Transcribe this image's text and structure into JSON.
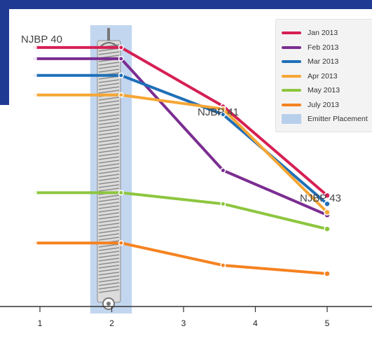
{
  "chart_data": {
    "type": "line",
    "x_categories": [
      "1",
      "2",
      "3",
      "4",
      "5"
    ],
    "site_labels": [
      {
        "text": "NJBP 40",
        "anchor_x": 1
      },
      {
        "text": "NJBP 41",
        "anchor_x": 3.55
      },
      {
        "text": "NJBP 43",
        "anchor_x": 5
      }
    ],
    "series": [
      {
        "name": "Jan 2013",
        "color": "#d61f54",
        "points": [
          [
            0.92,
            90
          ],
          [
            2.13,
            90
          ],
          [
            3.55,
            69
          ],
          [
            5,
            37
          ]
        ]
      },
      {
        "name": "Feb 2013",
        "color": "#7b2d91",
        "points": [
          [
            0.92,
            86
          ],
          [
            2.13,
            86
          ],
          [
            3.55,
            46
          ],
          [
            5,
            30
          ]
        ]
      },
      {
        "name": "Mar 2013",
        "color": "#1f6fb8",
        "points": [
          [
            0.92,
            80
          ],
          [
            2.13,
            80
          ],
          [
            3.55,
            66
          ],
          [
            5,
            34
          ]
        ]
      },
      {
        "name": "Apr 2013",
        "color": "#f6a635",
        "points": [
          [
            0.92,
            73
          ],
          [
            2.13,
            73
          ],
          [
            3.55,
            68
          ],
          [
            5,
            31
          ]
        ]
      },
      {
        "name": "May 2013",
        "color": "#8dc63f",
        "points": [
          [
            0.92,
            38
          ],
          [
            2.13,
            38
          ],
          [
            3.55,
            34
          ],
          [
            5,
            25
          ]
        ]
      },
      {
        "name": "July 2013",
        "color": "#f58220",
        "points": [
          [
            0.92,
            20
          ],
          [
            2.13,
            20
          ],
          [
            3.55,
            12
          ],
          [
            5,
            9
          ]
        ]
      }
    ],
    "emitter": {
      "name": "Emitter Placement",
      "color": "#b8cfec",
      "x_from": 1.7,
      "x_to": 2.28
    },
    "y_range": [
      0,
      100
    ],
    "x_range": [
      0.6,
      5.5
    ],
    "grid": false,
    "legend_position": "top-right"
  }
}
